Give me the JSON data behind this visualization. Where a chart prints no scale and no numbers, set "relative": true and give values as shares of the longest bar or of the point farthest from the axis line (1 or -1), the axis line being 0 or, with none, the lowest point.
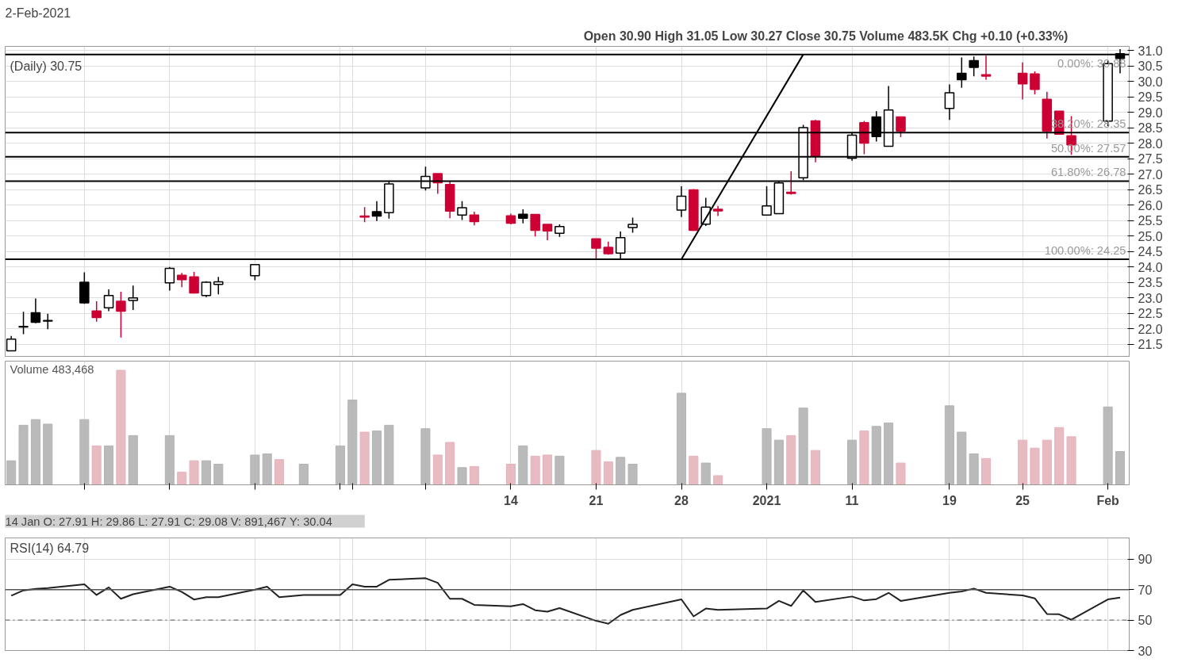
{
  "chart_data": [
    {
      "type": "candlestick",
      "title": "(Daily) 30.75",
      "annotations": [
        "2-Feb-2021",
        "Open 30.90  High 31.05  Low 30.27  Close 30.75  Volume 483.5K  Chg +0.10 (+0.33%)",
        "14 Jan O: 27.91   H: 29.86   L: 27.91   C: 29.08   V: 891,467   Y: 30.04"
      ],
      "x": [
        "2020-11-03",
        "2020-11-04",
        "2020-11-05",
        "2020-11-06",
        "2020-11-09",
        "2020-11-10",
        "2020-11-11",
        "2020-11-12",
        "2020-11-13",
        "2020-11-16",
        "2020-11-17",
        "2020-11-18",
        "2020-11-19",
        "2020-11-20",
        "2020-11-23",
        "2020-12-02",
        "2020-12-03",
        "2020-12-04",
        "2020-12-07",
        "2020-12-08",
        "2020-12-09",
        "2020-12-10",
        "2020-12-11",
        "2020-12-14",
        "2020-12-15",
        "2020-12-16",
        "2020-12-17",
        "2020-12-18",
        "2020-12-21",
        "2020-12-22",
        "2020-12-23",
        "2020-12-24",
        "2020-12-28",
        "2020-12-29",
        "2020-12-30",
        "2020-12-31",
        "2021-01-04",
        "2021-01-05",
        "2021-01-06",
        "2021-01-07",
        "2021-01-08",
        "2021-01-11",
        "2021-01-12",
        "2021-01-13",
        "2021-01-14",
        "2021-01-15",
        "2021-01-19",
        "2021-01-20",
        "2021-01-21",
        "2021-01-22",
        "2021-01-25",
        "2021-01-26",
        "2021-01-27",
        "2021-01-28",
        "2021-01-29",
        "2021-02-01",
        "2021-02-02"
      ],
      "ohlc": [
        [
          21.29,
          21.77,
          21.29,
          21.67
        ],
        [
          22.08,
          22.55,
          21.83,
          22.06
        ],
        [
          22.52,
          22.98,
          22.18,
          22.21
        ],
        [
          22.27,
          22.49,
          21.99,
          22.25
        ],
        [
          23.51,
          23.83,
          22.81,
          22.84
        ],
        [
          22.58,
          22.89,
          22.23,
          22.37
        ],
        [
          22.68,
          23.28,
          22.57,
          23.08
        ],
        [
          22.89,
          23.2,
          21.72,
          22.57
        ],
        [
          22.92,
          23.4,
          22.61,
          23.0
        ],
        [
          23.49,
          24.0,
          23.24,
          23.96
        ],
        [
          23.73,
          23.81,
          23.35,
          23.59
        ],
        [
          23.68,
          23.84,
          23.14,
          23.16
        ],
        [
          23.08,
          23.54,
          23.03,
          23.51
        ],
        [
          23.44,
          23.68,
          23.12,
          23.52
        ],
        [
          23.72,
          24.1,
          23.57,
          24.08
        ],
        [
          25.65,
          25.94,
          25.45,
          25.62
        ],
        [
          25.79,
          26.13,
          25.49,
          25.65
        ],
        [
          25.76,
          26.77,
          25.57,
          26.69
        ],
        [
          26.56,
          27.25,
          26.48,
          26.93
        ],
        [
          27.02,
          27.02,
          26.37,
          26.73
        ],
        [
          26.67,
          26.77,
          25.58,
          25.81
        ],
        [
          25.68,
          26.13,
          25.52,
          25.92
        ],
        [
          25.68,
          25.79,
          25.35,
          25.47
        ],
        [
          25.66,
          25.73,
          25.38,
          25.42
        ],
        [
          25.71,
          25.87,
          25.41,
          25.58
        ],
        [
          25.7,
          25.7,
          24.99,
          25.19
        ],
        [
          25.38,
          25.38,
          24.87,
          25.17
        ],
        [
          25.09,
          25.38,
          24.98,
          25.31
        ],
        [
          24.91,
          24.91,
          24.27,
          24.61
        ],
        [
          24.64,
          24.82,
          24.4,
          24.43
        ],
        [
          24.45,
          25.15,
          24.25,
          24.95
        ],
        [
          25.28,
          25.6,
          25.11,
          25.38
        ],
        [
          25.84,
          26.61,
          25.62,
          26.29
        ],
        [
          26.5,
          26.52,
          25.17,
          25.19
        ],
        [
          25.39,
          26.24,
          25.33,
          25.94
        ],
        [
          25.87,
          25.98,
          25.65,
          25.82
        ],
        [
          25.68,
          26.61,
          25.68,
          25.98
        ],
        [
          25.73,
          26.77,
          25.73,
          26.72
        ],
        [
          26.42,
          27.1,
          26.34,
          26.38
        ],
        [
          26.89,
          28.6,
          26.81,
          28.51
        ],
        [
          28.73,
          28.76,
          27.39,
          27.58
        ],
        [
          27.52,
          28.35,
          27.44,
          28.27
        ],
        [
          28.67,
          28.73,
          27.65,
          28.01
        ],
        [
          28.86,
          29.04,
          28.06,
          28.22
        ],
        [
          27.91,
          29.86,
          27.91,
          29.08
        ],
        [
          28.86,
          28.86,
          28.2,
          28.4
        ],
        [
          29.13,
          29.91,
          28.76,
          29.64
        ],
        [
          30.27,
          30.78,
          29.8,
          30.06
        ],
        [
          30.68,
          30.81,
          30.17,
          30.46
        ],
        [
          30.22,
          30.84,
          30.06,
          30.18
        ],
        [
          30.27,
          30.62,
          29.42,
          29.93
        ],
        [
          30.25,
          30.33,
          29.59,
          29.75
        ],
        [
          29.43,
          29.67,
          28.16,
          28.4
        ],
        [
          29.04,
          29.04,
          28.28,
          28.3
        ],
        [
          28.25,
          28.88,
          27.63,
          27.95
        ],
        [
          28.72,
          30.68,
          28.56,
          30.58
        ],
        [
          30.9,
          31.05,
          30.27,
          30.75
        ]
      ],
      "colors": [
        "#000000",
        "#000000",
        "#000000",
        "#000000",
        "#000000",
        "#cc0033",
        "#000000",
        "#cc0033",
        "#000000",
        "#000000",
        "#cc0033",
        "#cc0033",
        "#000000",
        "#000000",
        "#000000",
        "#cc0033",
        "#000000",
        "#000000",
        "#000000",
        "#cc0033",
        "#cc0033",
        "#000000",
        "#cc0033",
        "#cc0033",
        "#000000",
        "#cc0033",
        "#cc0033",
        "#000000",
        "#cc0033",
        "#cc0033",
        "#000000",
        "#000000",
        "#000000",
        "#cc0033",
        "#000000",
        "#cc0033",
        "#000000",
        "#000000",
        "#cc0033",
        "#000000",
        "#cc0033",
        "#000000",
        "#cc0033",
        "#000000",
        "#000000",
        "#cc0033",
        "#000000",
        "#000000",
        "#000000",
        "#cc0033",
        "#cc0033",
        "#cc0033",
        "#cc0033",
        "#cc0033",
        "#cc0033",
        "#000000",
        "#000000"
      ],
      "series": [
        {
          "type": "line",
          "color": "#000000",
          "x": [
            "2020-12-28",
            "2021-01-07"
          ],
          "values": [
            24.25,
            30.88
          ]
        }
      ],
      "ref_lines": [
        {
          "axis": "y",
          "value": 30.88,
          "label": "0.00%: 30.88",
          "color": "#000000"
        },
        {
          "axis": "y",
          "value": 28.35,
          "label": "38.20%: 28.35",
          "color": "#000000"
        },
        {
          "axis": "y",
          "value": 27.57,
          "label": "50.00%: 27.57",
          "color": "#000000"
        },
        {
          "axis": "y",
          "value": 26.78,
          "label": "61.80%: 26.78",
          "color": "#000000"
        },
        {
          "axis": "y",
          "value": 24.25,
          "label": "100.00%: 24.25",
          "color": "#000000"
        }
      ],
      "xlim": [
        "2020-11-02T12:00",
        "2021-02-02T18:00"
      ],
      "tick_labels": "y",
      "xticks": [
        {
          "value": "2020-11-09",
          "label": null
        },
        {
          "value": "2020-11-16",
          "label": null
        },
        {
          "value": "2020-11-23",
          "label": null
        },
        {
          "value": "2020-11-30",
          "label": null
        },
        {
          "value": "2020-12-01",
          "label": null
        },
        {
          "value": "2020-12-07",
          "label": null
        },
        {
          "value": "2020-12-14",
          "label": null
        },
        {
          "value": "2020-12-21",
          "label": null
        },
        {
          "value": "2020-12-28",
          "label": null
        },
        {
          "value": "2021-01-04",
          "label": null
        },
        {
          "value": "2021-01-11",
          "label": null
        },
        {
          "value": "2021-01-19",
          "label": null
        },
        {
          "value": "2021-01-25",
          "label": null
        },
        {
          "value": "2021-02-01",
          "label": null
        }
      ],
      "ylim": [
        21.11,
        31.14
      ],
      "yticks": [
        21.5,
        {
          "value": 22,
          "label": "22.0"
        },
        22.5,
        {
          "value": 23,
          "label": "23.0"
        },
        23.5,
        {
          "value": 24,
          "label": "24.0"
        },
        24.5,
        {
          "value": 25,
          "label": "25.0"
        },
        25.5,
        {
          "value": 26,
          "label": "26.0"
        },
        26.5,
        {
          "value": 27,
          "label": "27.0"
        },
        27.5,
        {
          "value": 28,
          "label": "28.0"
        },
        28.5,
        {
          "value": 29,
          "label": "29.0"
        },
        29.5,
        {
          "value": 30,
          "label": "30.0"
        },
        30.5,
        {
          "value": 31,
          "label": "31.0"
        }
      ],
      "grid": true
    },
    {
      "type": "bar",
      "title": "Volume 483,468",
      "relative": true,
      "tick_labels": "x",
      "grid": true,
      "xlim": [
        "2020-11-02T12:00",
        "2021-02-02T18:00"
      ],
      "xticks": [
        {
          "value": "2020-11-09",
          "label": null
        },
        {
          "value": "2020-11-16",
          "label": null
        },
        {
          "value": "2020-11-23",
          "label": null
        },
        {
          "value": "2020-11-30",
          "label": null
        },
        {
          "value": "2020-12-01",
          "label": null
        },
        {
          "value": "2020-12-07",
          "label": null
        },
        {
          "value": "2020-12-14",
          "label": "14"
        },
        {
          "value": "2020-12-21",
          "label": "21"
        },
        {
          "value": "2020-12-28",
          "label": "28"
        },
        {
          "value": "2021-01-04",
          "label": "2021"
        },
        {
          "value": "2021-01-11",
          "label": "11"
        },
        {
          "value": "2021-01-19",
          "label": "19"
        },
        {
          "value": "2021-01-25",
          "label": "25"
        },
        {
          "value": "2021-02-01",
          "label": "Feb"
        }
      ],
      "x": [
        "2020-11-03",
        "2020-11-04",
        "2020-11-05",
        "2020-11-06",
        "2020-11-09",
        "2020-11-10",
        "2020-11-11",
        "2020-11-12",
        "2020-11-13",
        "2020-11-16",
        "2020-11-17",
        "2020-11-18",
        "2020-11-19",
        "2020-11-20",
        "2020-11-23",
        "2020-11-24",
        "2020-11-25",
        "2020-11-27",
        "2020-11-30",
        "2020-12-01",
        "2020-12-02",
        "2020-12-03",
        "2020-12-04",
        "2020-12-07",
        "2020-12-08",
        "2020-12-09",
        "2020-12-10",
        "2020-12-11",
        "2020-12-14",
        "2020-12-15",
        "2020-12-16",
        "2020-12-17",
        "2020-12-18",
        "2020-12-21",
        "2020-12-22",
        "2020-12-23",
        "2020-12-24",
        "2020-12-28",
        "2020-12-29",
        "2020-12-30",
        "2020-12-31",
        "2021-01-04",
        "2021-01-05",
        "2021-01-06",
        "2021-01-07",
        "2021-01-08",
        "2021-01-11",
        "2021-01-12",
        "2021-01-13",
        "2021-01-14",
        "2021-01-15",
        "2021-01-19",
        "2021-01-20",
        "2021-01-21",
        "2021-01-22",
        "2021-01-25",
        "2021-01-26",
        "2021-01-27",
        "2021-01-28",
        "2021-01-29",
        "2021-02-01",
        "2021-02-02"
      ],
      "values": [
        0.21,
        0.52,
        0.57,
        0.53,
        0.57,
        0.34,
        0.34,
        1,
        0.43,
        0.43,
        0.11,
        0.21,
        0.21,
        0.18,
        0.26,
        0.27,
        0.22,
        0.18,
        0.34,
        0.74,
        0.46,
        0.47,
        0.52,
        0.49,
        0.26,
        0.37,
        0.15,
        0.16,
        0.18,
        0.34,
        0.25,
        0.26,
        0.25,
        0.3,
        0.2,
        0.24,
        0.18,
        0.8,
        0.25,
        0.19,
        0.08,
        0.49,
        0.39,
        0.43,
        0.67,
        0.3,
        0.39,
        0.47,
        0.51,
        0.54,
        0.19,
        0.69,
        0.46,
        0.27,
        0.23,
        0.39,
        0.32,
        0.39,
        0.5,
        0.42,
        0.68,
        0.29
      ],
      "colors": [
        "#b3b3b3",
        "#b3b3b3",
        "#b3b3b3",
        "#b3b3b3",
        "#b3b3b3",
        "#e6b3bb",
        "#b3b3b3",
        "#e6b3bb",
        "#b3b3b3",
        "#b3b3b3",
        "#e6b3bb",
        "#e6b3bb",
        "#b3b3b3",
        "#b3b3b3",
        "#b3b3b3",
        "#b3b3b3",
        "#e6b3bb",
        "#b3b3b3",
        "#b3b3b3",
        "#b3b3b3",
        "#e6b3bb",
        "#b3b3b3",
        "#b3b3b3",
        "#b3b3b3",
        "#e6b3bb",
        "#e6b3bb",
        "#b3b3b3",
        "#e6b3bb",
        "#e6b3bb",
        "#b3b3b3",
        "#e6b3bb",
        "#e6b3bb",
        "#b3b3b3",
        "#e6b3bb",
        "#e6b3bb",
        "#b3b3b3",
        "#b3b3b3",
        "#b3b3b3",
        "#e6b3bb",
        "#b3b3b3",
        "#e6b3bb",
        "#b3b3b3",
        "#b3b3b3",
        "#e6b3bb",
        "#b3b3b3",
        "#e6b3bb",
        "#b3b3b3",
        "#e6b3bb",
        "#b3b3b3",
        "#b3b3b3",
        "#e6b3bb",
        "#b3b3b3",
        "#b3b3b3",
        "#b3b3b3",
        "#e6b3bb",
        "#e6b3bb",
        "#e6b3bb",
        "#e6b3bb",
        "#e6b3bb",
        "#e6b3bb",
        "#b3b3b3",
        "#b3b3b3"
      ]
    },
    {
      "type": "line",
      "title": "RSI(14) 64.79",
      "tick_labels": "y",
      "xlim": [
        "2020-11-02T12:00",
        "2021-02-02T18:00"
      ],
      "xticks": [
        {
          "value": "2020-11-09",
          "label": null
        },
        {
          "value": "2020-11-16",
          "label": null
        },
        {
          "value": "2020-11-23",
          "label": null
        },
        {
          "value": "2020-11-30",
          "label": null
        },
        {
          "value": "2020-12-01",
          "label": null
        },
        {
          "value": "2020-12-07",
          "label": null
        },
        {
          "value": "2020-12-14",
          "label": null
        },
        {
          "value": "2020-12-21",
          "label": null
        },
        {
          "value": "2020-12-28",
          "label": null
        },
        {
          "value": "2021-01-04",
          "label": null
        },
        {
          "value": "2021-01-11",
          "label": null
        },
        {
          "value": "2021-01-19",
          "label": null
        },
        {
          "value": "2021-01-25",
          "label": null
        },
        {
          "value": "2021-02-01",
          "label": null
        }
      ],
      "x": [
        "2020-11-03",
        "2020-11-04",
        "2020-11-05",
        "2020-11-06",
        "2020-11-09",
        "2020-11-10",
        "2020-11-11",
        "2020-11-12",
        "2020-11-13",
        "2020-11-16",
        "2020-11-17",
        "2020-11-18",
        "2020-11-19",
        "2020-11-20",
        "2020-11-23",
        "2020-11-24",
        "2020-11-25",
        "2020-11-27",
        "2020-11-30",
        "2020-12-01",
        "2020-12-02",
        "2020-12-03",
        "2020-12-04",
        "2020-12-07",
        "2020-12-08",
        "2020-12-09",
        "2020-12-10",
        "2020-12-11",
        "2020-12-14",
        "2020-12-15",
        "2020-12-16",
        "2020-12-17",
        "2020-12-18",
        "2020-12-21",
        "2020-12-22",
        "2020-12-23",
        "2020-12-24",
        "2020-12-28",
        "2020-12-29",
        "2020-12-30",
        "2020-12-31",
        "2021-01-04",
        "2021-01-05",
        "2021-01-06",
        "2021-01-07",
        "2021-01-08",
        "2021-01-11",
        "2021-01-12",
        "2021-01-13",
        "2021-01-14",
        "2021-01-15",
        "2021-01-19",
        "2021-01-20",
        "2021-01-21",
        "2021-01-22",
        "2021-01-25",
        "2021-01-26",
        "2021-01-27",
        "2021-01-28",
        "2021-01-29",
        "2021-02-01",
        "2021-02-02"
      ],
      "series": [
        {
          "color": "#222222",
          "values": [
            66,
            69.5,
            70.5,
            71,
            73.5,
            66.5,
            71.5,
            64,
            67,
            72,
            68.5,
            63.5,
            65,
            65,
            70,
            72,
            65,
            66.5,
            66.5,
            73.5,
            72,
            72,
            76.5,
            77.5,
            74.5,
            64,
            64,
            60,
            59,
            60.5,
            56.5,
            55.5,
            57.9,
            49.5,
            47.6,
            53.3,
            56.7,
            63.6,
            52.4,
            57.6,
            56.7,
            57.6,
            62.6,
            59.3,
            69.5,
            61.9,
            65.5,
            62.9,
            63.8,
            67.9,
            62.6,
            67.9,
            68.8,
            70.7,
            67.9,
            66.2,
            64.3,
            54,
            53.8,
            50.2,
            63.6,
            64.8
          ]
        }
      ],
      "ref_lines": [
        {
          "axis": "y",
          "value": 70,
          "color": "#555555",
          "line_style": "solid"
        },
        {
          "axis": "y",
          "value": 50,
          "color": "#777777",
          "line_style": "dashdot"
        }
      ],
      "ylim": [
        30,
        104
      ],
      "yticks": [
        30,
        50,
        70,
        90
      ],
      "grid": true
    }
  ]
}
